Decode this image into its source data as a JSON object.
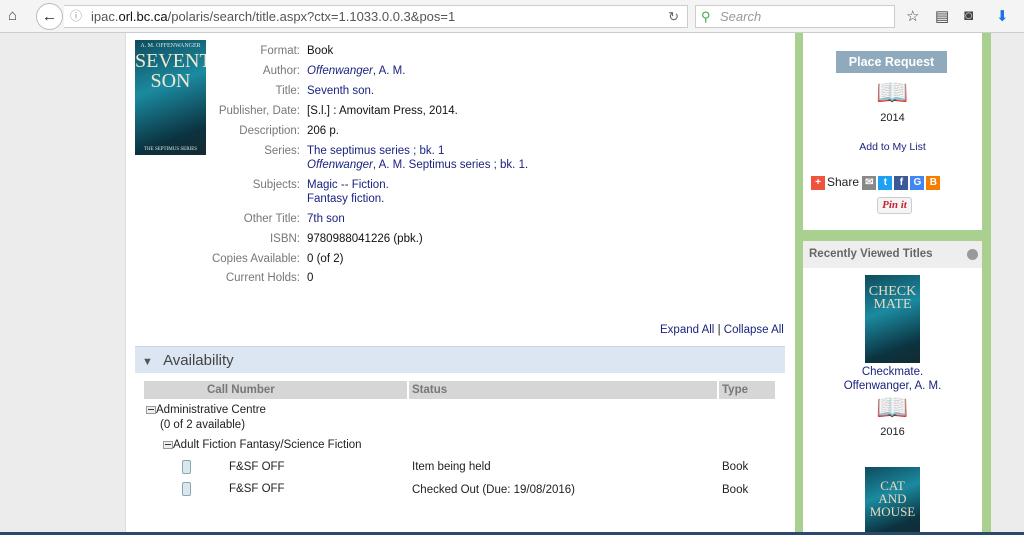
{
  "browser": {
    "url_host_prefix": "ipac.",
    "url_host": "orl.bc.ca",
    "url_path": "/polaris/search/title.aspx?ctx=1.1033.0.0.3&pos=1",
    "search_placeholder": "Search"
  },
  "record": {
    "cover_author": "A. M. OFFENWANGER",
    "cover_title": "SEVENTH SON",
    "cover_series": "THE SEPTIMUS SERIES",
    "fields": {
      "format_label": "Format:",
      "format": "Book",
      "author_label": "Author:",
      "author_italic": "Offenwanger",
      "author_rest": ", A. M.",
      "title_label": "Title:",
      "title": "Seventh son.",
      "publisher_label": "Publisher, Date:",
      "publisher": "[S.l.] : Amovitam Press, 2014.",
      "description_label": "Description:",
      "description": "206 p.",
      "series_label": "Series:",
      "series_1": "The septimus series ; bk. 1",
      "series_2_italic": "Offenwanger",
      "series_2_rest": ", A. M. Septimus series ; bk. 1.",
      "subjects_label": "Subjects:",
      "subject_1": "Magic -- Fiction.",
      "subject_2": "Fantasy fiction.",
      "other_title_label": "Other Title:",
      "other_title": "7th son",
      "isbn_label": "ISBN:",
      "isbn": "9780988041226 (pbk.)",
      "copies_label": "Copies Available:",
      "copies": "0 (of 2)",
      "holds_label": "Current Holds:",
      "holds": "0"
    }
  },
  "controls": {
    "expand_all": "Expand All",
    "separator": "|",
    "collapse_all": "Collapse All"
  },
  "availability": {
    "title": "Availability",
    "columns": [
      "Call Number",
      "Status",
      "Type"
    ],
    "branch": "Administrative Centre",
    "branch_count": "(0 of 2 available)",
    "collection": "Adult Fiction Fantasy/Science Fiction",
    "items": [
      {
        "call_number": "F&SF OFF",
        "status": "Item being held",
        "type": "Book"
      },
      {
        "call_number": "F&SF OFF",
        "status": "Checked Out (Due: 19/08/2016)",
        "type": "Book"
      }
    ]
  },
  "sidebar": {
    "place_request": "Place Request",
    "year": "2014",
    "add_to_list": "Add to My List",
    "share": "Share",
    "pinit": "Pin it",
    "recent_title": "Recently Viewed Titles",
    "recent": [
      {
        "cover_title": "CHECK MATE",
        "title": "Checkmate.",
        "author": "Offenwanger, A. M.",
        "year": "2016"
      },
      {
        "cover_title": "CAT AND MOUSE"
      }
    ]
  },
  "colors": {
    "accent_green": "#a9d08e",
    "link": "#1a237e",
    "availability_bar": "#dce6f2",
    "button": "#8fa9bd"
  }
}
